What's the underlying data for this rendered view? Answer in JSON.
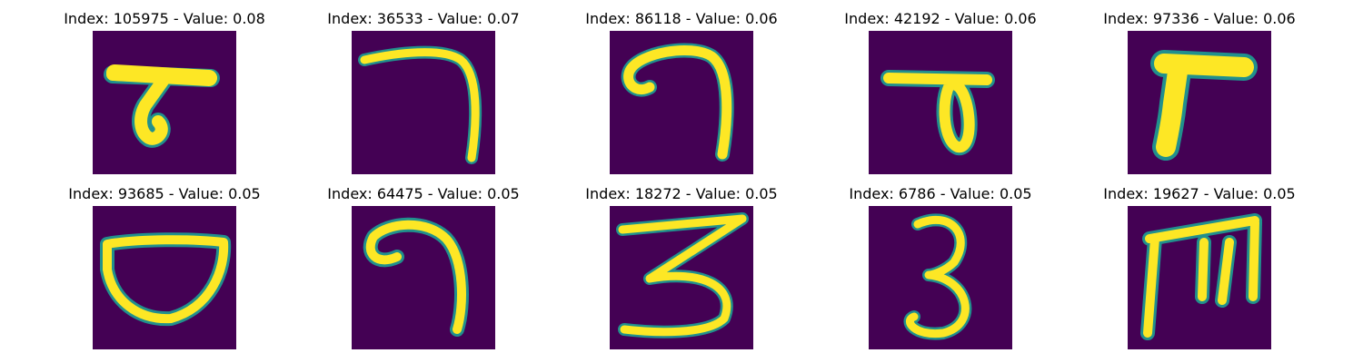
{
  "figure": {
    "colormap": "viridis",
    "background_color": "#440154",
    "foreground_color": "#fde725",
    "edge_color": "#21908d",
    "panels": [
      {
        "title": "Index: 105975 - Value: 0.08",
        "digit_shape": "seven-variant"
      },
      {
        "title": "Index: 36533 - Value: 0.07",
        "digit_shape": "seven"
      },
      {
        "title": "Index: 86118 - Value: 0.06",
        "digit_shape": "seven-curl"
      },
      {
        "title": "Index: 42192 - Value: 0.06",
        "digit_shape": "seven-loop"
      },
      {
        "title": "Index: 97336 - Value: 0.06",
        "digit_shape": "seven-thick"
      },
      {
        "title": "Index: 93685 - Value: 0.05",
        "digit_shape": "zero-bowl"
      },
      {
        "title": "Index: 64475 - Value: 0.05",
        "digit_shape": "seven-hook"
      },
      {
        "title": "Index: 18272 - Value: 0.05",
        "digit_shape": "three-wide"
      },
      {
        "title": "Index: 6786 - Value: 0.05",
        "digit_shape": "three"
      },
      {
        "title": "Index: 19627 - Value: 0.05",
        "digit_shape": "m-shape"
      }
    ]
  }
}
